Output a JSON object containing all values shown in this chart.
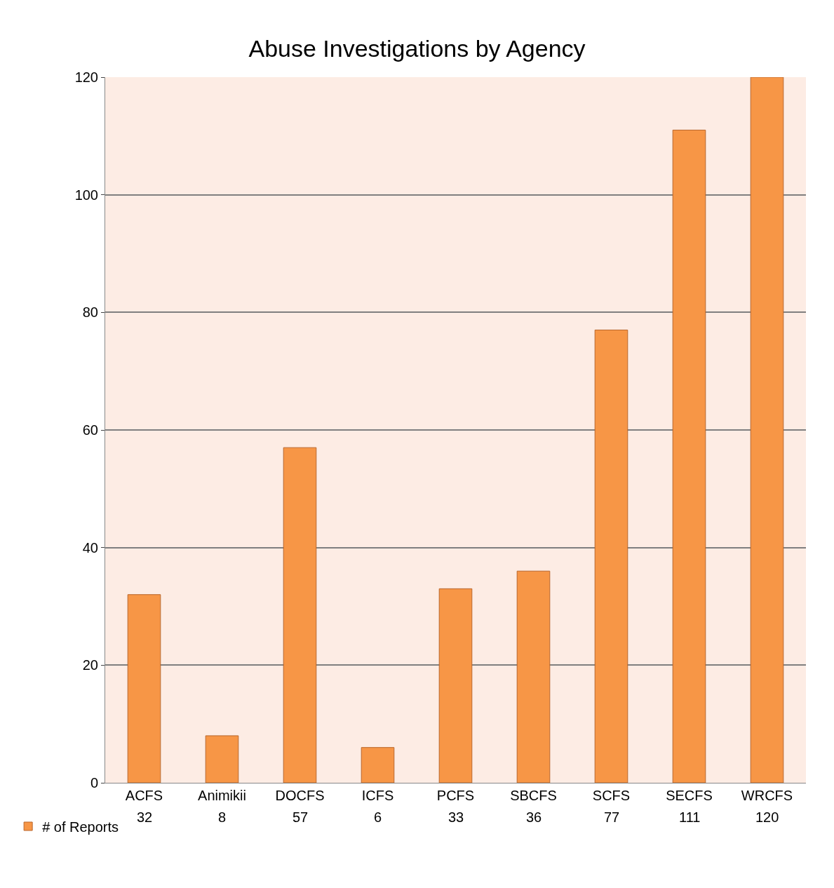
{
  "chart_data": {
    "type": "bar",
    "title": "Abuse Investigations by Agency",
    "categories": [
      "ACFS",
      "Animikii",
      "DOCFS",
      "ICFS",
      "PCFS",
      "SBCFS",
      "SCFS",
      "SECFS",
      "WRCFS"
    ],
    "series": [
      {
        "name": "# of Reports",
        "color": "#f79646",
        "values": [
          32,
          8,
          57,
          6,
          33,
          36,
          77,
          111,
          120
        ]
      }
    ],
    "ylim": [
      0,
      120
    ],
    "yticks": [
      0,
      20,
      40,
      60,
      80,
      100,
      120
    ],
    "grid": "y",
    "legend": "bottom left",
    "data_labels": true
  }
}
